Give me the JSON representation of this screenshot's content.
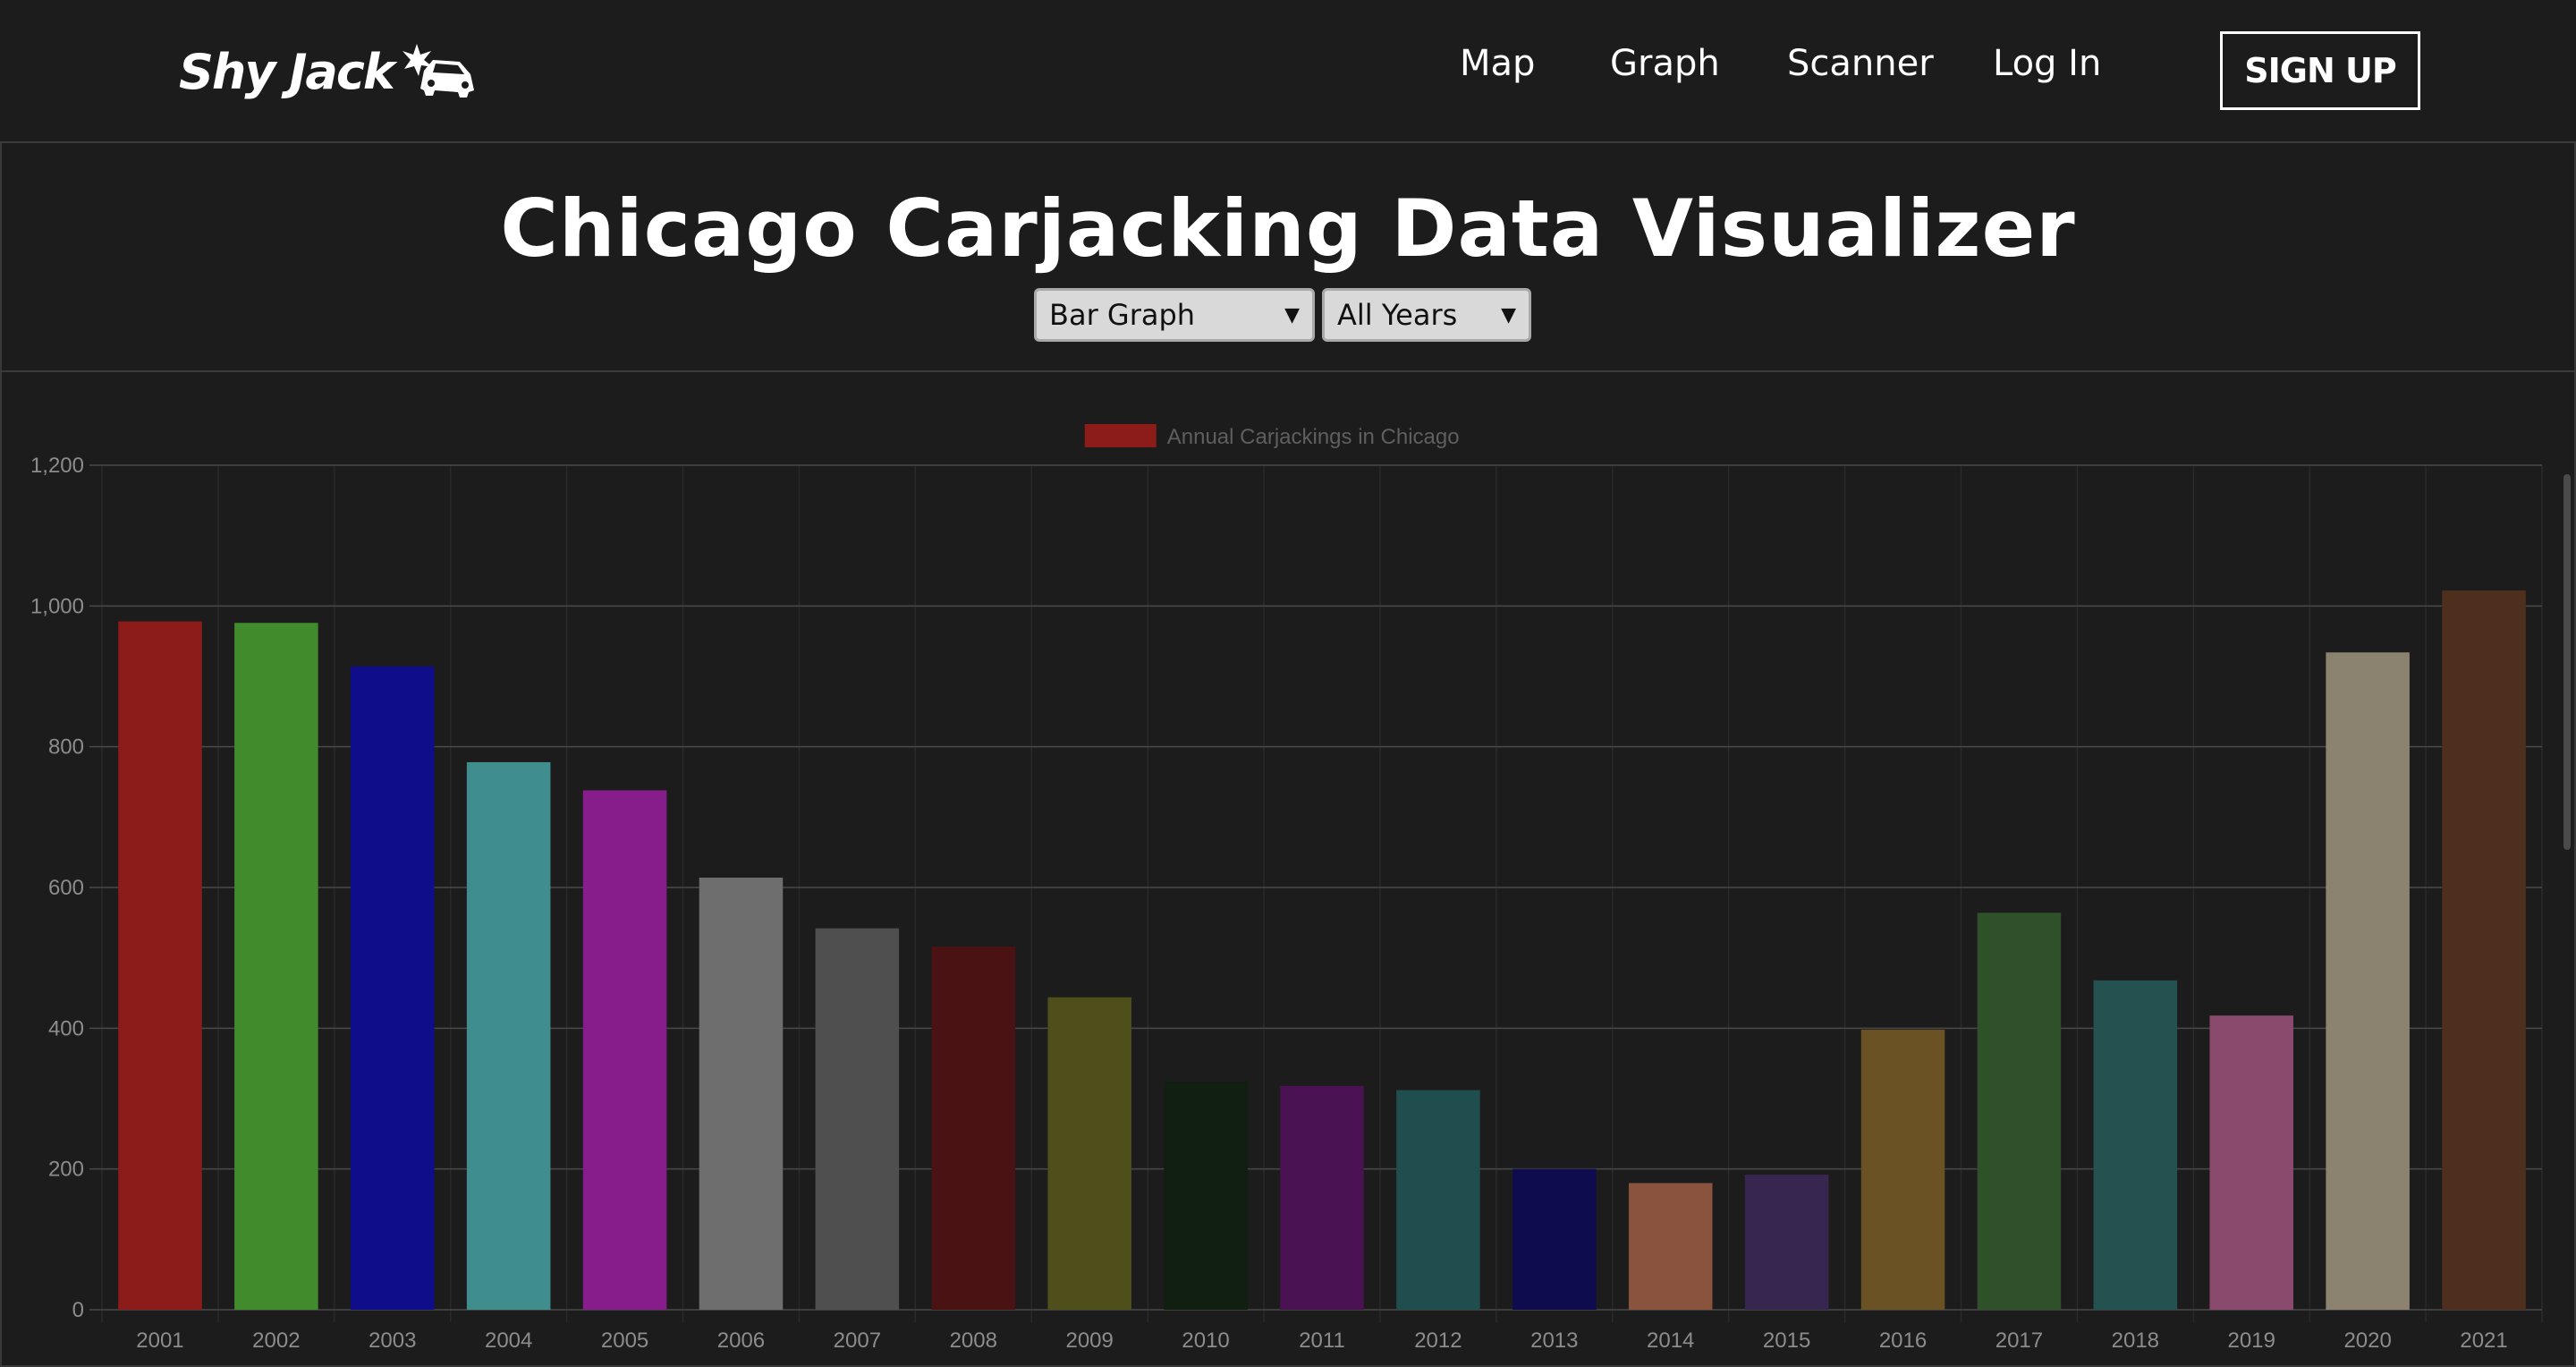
{
  "nav": {
    "logo_text": "Shy Jack",
    "links": [
      "Map",
      "Graph",
      "Scanner",
      "Log In"
    ],
    "signup_label": "SIGN UP"
  },
  "header": {
    "title": "Chicago Carjacking Data Visualizer",
    "chart_type_selected": "Bar Graph",
    "year_selected": "All Years"
  },
  "colors": {
    "background": "#1d1c1d",
    "grid": "#4a494a",
    "tick_text": "#8c8c8c"
  },
  "chart_data": {
    "type": "bar",
    "legend": "Annual Carjackings in Chicago",
    "legend_position": "top",
    "legend_color": "#8b1c1a",
    "categories": [
      "2001",
      "2002",
      "2003",
      "2004",
      "2005",
      "2006",
      "2007",
      "2008",
      "2009",
      "2010",
      "2011",
      "2012",
      "2013",
      "2014",
      "2015",
      "2016",
      "2017",
      "2018",
      "2019",
      "2020",
      "2021"
    ],
    "values": [
      978,
      976,
      914,
      778,
      738,
      614,
      542,
      516,
      444,
      324,
      318,
      312,
      200,
      180,
      192,
      398,
      564,
      468,
      418,
      934,
      1022
    ],
    "colors": [
      "#8b1c1a",
      "#418b2c",
      "#100d8b",
      "#408d8d",
      "#871d8b",
      "#6e6e6e",
      "#4f4f4f",
      "#4a1212",
      "#4f4f1c",
      "#111f10",
      "#4a1252",
      "#204e4f",
      "#0e0c4f",
      "#89533e",
      "#37264f",
      "#6b5224",
      "#2f5129",
      "#235251",
      "#8a4a6d",
      "#8c8270",
      "#4e2f1e"
    ],
    "yticks": [
      0,
      200,
      400,
      600,
      800,
      1000,
      1200
    ],
    "ylim": [
      0,
      1200
    ],
    "grid": true
  }
}
